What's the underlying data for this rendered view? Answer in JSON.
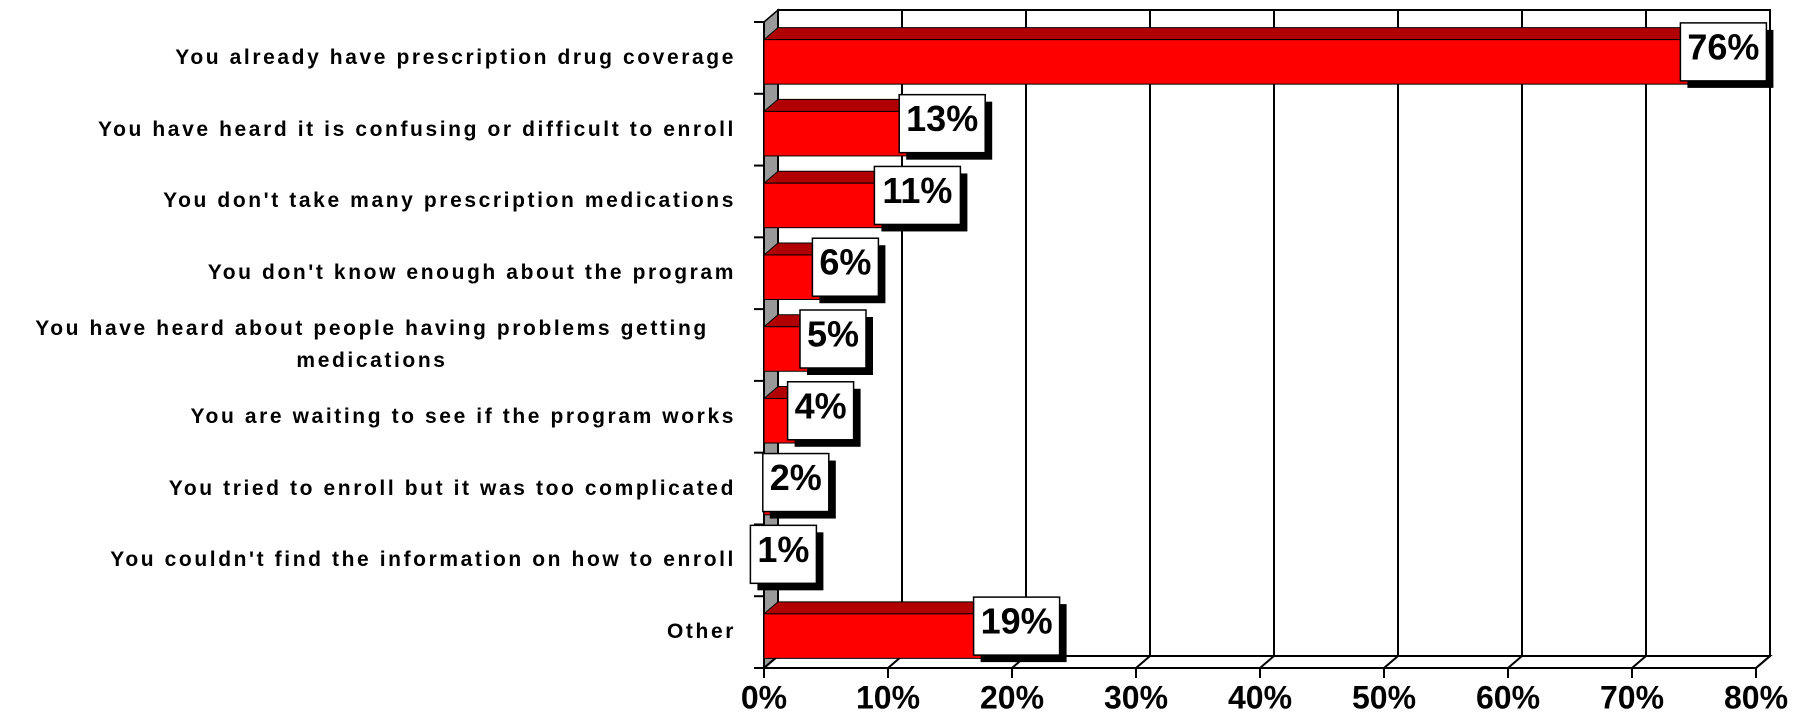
{
  "chart_data": {
    "type": "bar",
    "orientation": "horizontal",
    "categories": [
      "You already have prescription drug coverage",
      "You have heard it is confusing or difficult to enroll",
      "You don't take many prescription medications",
      "You don't know enough about the program",
      "You have heard about people having problems getting medications",
      "You are waiting to see if the program works",
      "You tried to enroll but it was too complicated",
      "You couldn't find the information on how to enroll",
      "Other"
    ],
    "values": [
      76,
      13,
      11,
      6,
      5,
      4,
      2,
      1,
      19
    ],
    "value_labels": [
      "76%",
      "13%",
      "11%",
      "6%",
      "5%",
      "4%",
      "2%",
      "1%",
      "19%"
    ],
    "color": "#ff0000",
    "xlim": [
      0,
      80
    ],
    "xticks": [
      {
        "value": 0,
        "label": "0%"
      },
      {
        "value": 10,
        "label": "10%"
      },
      {
        "value": 20,
        "label": "20%"
      },
      {
        "value": 30,
        "label": "30%"
      },
      {
        "value": 40,
        "label": "40%"
      },
      {
        "value": 50,
        "label": "50%"
      },
      {
        "value": 60,
        "label": "60%"
      },
      {
        "value": 70,
        "label": "70%"
      },
      {
        "value": 80,
        "label": "80%"
      }
    ],
    "grid": true
  }
}
